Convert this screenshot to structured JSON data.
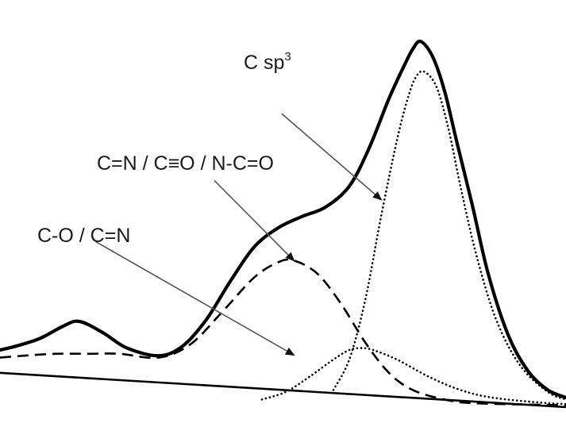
{
  "chart_data": {
    "type": "line",
    "title": "",
    "xlabel": "",
    "ylabel": "",
    "axes_visible": false,
    "grid": false,
    "background": "#ffffff",
    "series": [
      {
        "style": "solid",
        "color": "#000000",
        "points": [
          [
            0,
            0.15
          ],
          [
            20,
            0.16
          ],
          [
            50,
            0.18
          ],
          [
            80,
            0.213
          ],
          [
            100,
            0.225
          ],
          [
            130,
            0.195
          ],
          [
            160,
            0.155
          ],
          [
            200,
            0.135
          ],
          [
            230,
            0.16
          ],
          [
            260,
            0.23
          ],
          [
            290,
            0.33
          ],
          [
            320,
            0.42
          ],
          [
            350,
            0.47
          ],
          [
            380,
            0.5
          ],
          [
            410,
            0.525
          ],
          [
            440,
            0.58
          ],
          [
            465,
            0.68
          ],
          [
            490,
            0.81
          ],
          [
            510,
            0.9
          ],
          [
            520,
            0.94
          ],
          [
            530,
            0.96
          ],
          [
            545,
            0.92
          ],
          [
            560,
            0.83
          ],
          [
            575,
            0.7
          ],
          [
            595,
            0.53
          ],
          [
            615,
            0.35
          ],
          [
            640,
            0.19
          ],
          [
            665,
            0.095
          ],
          [
            690,
            0.045
          ],
          [
            713,
            0.025
          ]
        ]
      },
      {
        "style": "dashed",
        "color": "#000000",
        "points": [
          [
            0,
            0.13
          ],
          [
            30,
            0.135
          ],
          [
            70,
            0.14
          ],
          [
            110,
            0.14
          ],
          [
            150,
            0.14
          ],
          [
            200,
            0.13
          ],
          [
            240,
            0.165
          ],
          [
            280,
            0.25
          ],
          [
            320,
            0.34
          ],
          [
            350,
            0.38
          ],
          [
            370,
            0.385
          ],
          [
            400,
            0.35
          ],
          [
            430,
            0.27
          ],
          [
            460,
            0.17
          ],
          [
            490,
            0.09
          ],
          [
            520,
            0.045
          ],
          [
            560,
            0.02
          ],
          [
            600,
            0.01
          ],
          [
            713,
            0.005
          ]
        ]
      },
      {
        "style": "dotted",
        "color": "#000000",
        "points": [
          [
            330,
            0.02
          ],
          [
            360,
            0.04
          ],
          [
            390,
            0.08
          ],
          [
            420,
            0.125
          ],
          [
            440,
            0.15
          ],
          [
            455,
            0.155
          ],
          [
            470,
            0.15
          ],
          [
            500,
            0.125
          ],
          [
            540,
            0.08
          ],
          [
            580,
            0.045
          ],
          [
            620,
            0.025
          ],
          [
            680,
            0.012
          ],
          [
            713,
            0.008
          ]
        ]
      },
      {
        "style": "dotted",
        "color": "#000000",
        "points": [
          [
            420,
            0.045
          ],
          [
            440,
            0.125
          ],
          [
            460,
            0.28
          ],
          [
            480,
            0.5
          ],
          [
            500,
            0.7
          ],
          [
            515,
            0.82
          ],
          [
            525,
            0.87
          ],
          [
            535,
            0.88
          ],
          [
            550,
            0.84
          ],
          [
            565,
            0.73
          ],
          [
            580,
            0.58
          ],
          [
            600,
            0.4
          ],
          [
            625,
            0.23
          ],
          [
            655,
            0.11
          ],
          [
            690,
            0.04
          ],
          [
            713,
            0.02
          ]
        ]
      },
      {
        "style": "baseline",
        "color": "#000000",
        "points": [
          [
            0,
            0.09
          ],
          [
            713,
            0.0
          ]
        ]
      }
    ],
    "annotations": [
      {
        "text": "C sp",
        "superscript": "3",
        "arrow_from": [
          355,
          0.77
        ],
        "arrow_to": [
          480,
          0.545
        ]
      },
      {
        "text": "C=N / C≡O / N-C=O",
        "arrow_from": [
          270,
          0.595
        ],
        "arrow_to": [
          370,
          0.385
        ]
      },
      {
        "text": "C-O / C=N",
        "arrow_from": [
          120,
          0.435
        ],
        "arrow_to": [
          370,
          0.137
        ]
      }
    ]
  }
}
